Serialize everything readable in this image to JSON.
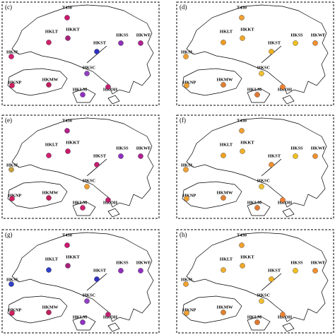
{
  "stations": [
    "T430",
    "HKLT",
    "HKKT",
    "HKST",
    "HKSS",
    "HKWF",
    "HKSL",
    "HKSC",
    "HKMW",
    "HKNP",
    "HKLM",
    "HKOH"
  ],
  "panels": [
    {
      "label": "(c)",
      "colors": [
        "#c8186e",
        "#d0206a",
        "#a8207a",
        "#3030c0",
        "#9030b8",
        "#b02090",
        "#d02070",
        "#9040c0",
        "#c02060",
        "#d02060",
        "#9030c0",
        "#c02070"
      ]
    },
    {
      "label": "(d)",
      "colors": [
        "#f0a030",
        "#f09a20",
        "#f0a828",
        "#f0b020",
        "#f0c020",
        "#f09030",
        "#f0a030",
        "#f0c030",
        "#e08030",
        "#f0a030",
        "#e07830",
        "#f08030"
      ]
    },
    {
      "label": "(e)",
      "colors": [
        "#b0208a",
        "#d02070",
        "#c81868",
        "#c02070",
        "#9030c0",
        "#b02090",
        "#c8a040",
        "#f0a030",
        "#c02060",
        "#d02060",
        "#d02070",
        "#c02070"
      ]
    },
    {
      "label": "(f)",
      "colors": [
        "#f0a030",
        "#f0a020",
        "#f0b028",
        "#f09030",
        "#f0c020",
        "#f09030",
        "#f0a030",
        "#f0c030",
        "#e08030",
        "#f0a030",
        "#e07830",
        "#f08030"
      ]
    },
    {
      "label": "(g)",
      "colors": [
        "#c8186e",
        "#3040c8",
        "#a8207a",
        "#3030c0",
        "#9030b8",
        "#9030c0",
        "#3040c8",
        "#9040c0",
        "#c02060",
        "#d02060",
        "#9030c0",
        "#c02070"
      ]
    },
    {
      "label": "(h)",
      "colors": [
        "#f0a030",
        "#f0b030",
        "#f0a828",
        "#f0b020",
        "#f0c020",
        "#f09030",
        "#f0a030",
        "#f0c030",
        "#e08030",
        "#f0a030",
        "#e07830",
        "#f08030"
      ]
    }
  ]
}
